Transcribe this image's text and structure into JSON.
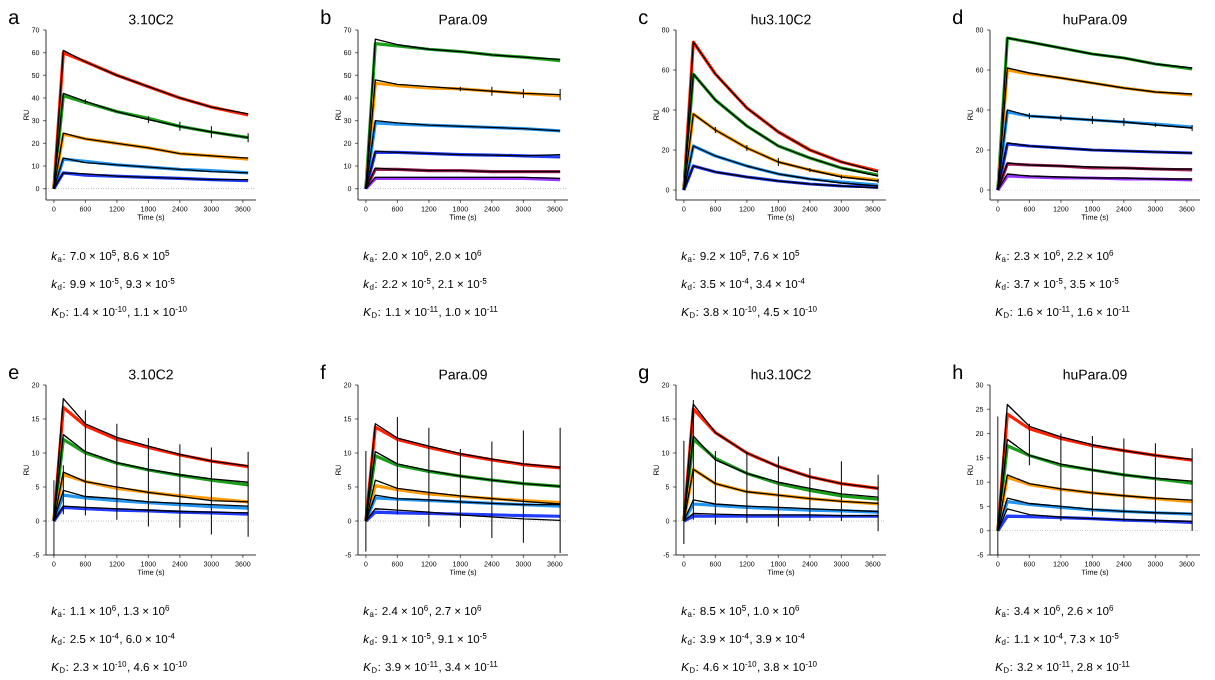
{
  "chart_data": [
    {
      "type": "line",
      "title": "3.10C2",
      "xlabel": "Time (s)",
      "ylabel": "RU",
      "x": [
        0,
        180,
        600,
        1200,
        1800,
        2400,
        3000,
        3700
      ],
      "xlim": [
        -150,
        3850
      ],
      "xticks": [
        0,
        600,
        1200,
        1800,
        2400,
        3000,
        3600
      ],
      "ylim": [
        -5,
        70
      ],
      "yticks": [
        0,
        10,
        20,
        30,
        40,
        50,
        60,
        70
      ],
      "annotations": [
        "a",
        "*k*$_{a}$: 7.0 × 10$^{5}$, 8.6 × 10$^{5}$",
        "*k*$_{d}$: 9.9 × 10$^{-5}$, 9.3 × 10$^{-5}$",
        "*K*$_{D}$: 1.4 × 10$^{-10}$, 1.1 × 10$^{-10}$"
      ],
      "ref_lines": [
        {
          "axis": "y",
          "value": 0,
          "line_style": "dotted"
        }
      ],
      "series": [
        {
          "color": "#ff2200",
          "values": [
            0,
            60,
            56,
            50,
            45,
            40,
            36,
            32.5
          ]
        },
        {
          "color": "#1a9e1a",
          "values": [
            0,
            41,
            38,
            34,
            31,
            27.5,
            25,
            22.5
          ]
        },
        {
          "color": "#ff9a00",
          "values": [
            0,
            24,
            22,
            20,
            18,
            15.5,
            14.5,
            13
          ]
        },
        {
          "color": "#2196f3",
          "values": [
            0,
            13,
            12,
            10.5,
            9.5,
            8.5,
            8,
            7
          ]
        },
        {
          "color": "#1f3cff",
          "values": [
            0,
            7,
            6,
            5.5,
            5,
            4.5,
            4,
            3.5
          ]
        },
        {
          "color": "#000000",
          "values": [
            0,
            61,
            56,
            50,
            45,
            40,
            36,
            33
          ]
        },
        {
          "color": "#000000",
          "values": [
            0,
            42,
            38.5,
            34,
            30.5,
            27.5,
            25,
            22.5
          ],
          "errors": [
            null,
            null,
            1,
            null,
            1.5,
            2,
            2.5,
            2
          ]
        },
        {
          "color": "#000000",
          "values": [
            0,
            24.5,
            22,
            20,
            18,
            15.5,
            14.5,
            13.5
          ]
        },
        {
          "color": "#000000",
          "values": [
            0,
            13.5,
            11.5,
            10.5,
            9.5,
            8.5,
            7.5,
            7
          ]
        },
        {
          "color": "#000000",
          "values": [
            0,
            7,
            6.5,
            5.5,
            5,
            4.5,
            4,
            4
          ]
        }
      ]
    },
    {
      "type": "line",
      "title": "Para.09",
      "xlabel": "Time (s)",
      "ylabel": "RU",
      "x": [
        0,
        180,
        600,
        1200,
        1800,
        2400,
        3000,
        3700
      ],
      "xlim": [
        -150,
        3850
      ],
      "xticks": [
        0,
        600,
        1200,
        1800,
        2400,
        3000,
        3600
      ],
      "ylim": [
        -5,
        70
      ],
      "yticks": [
        0,
        10,
        20,
        30,
        40,
        50,
        60,
        70
      ],
      "annotations": [
        "b",
        "*k*$_{a}$: 2.0 × 10$^{6}$, 2.0 × 10$^{6}$",
        "*k*$_{d}$: 2.2 × 10$^{-5}$, 2.1 × 10$^{-5}$",
        "*K*$_{D}$: 1.1 × 10$^{-11}$, 1.0 × 10$^{-11}$"
      ],
      "ref_lines": [
        {
          "axis": "y",
          "value": 0,
          "line_style": "dotted"
        }
      ],
      "series": [
        {
          "color": "#1a9e1a",
          "values": [
            0,
            64,
            63,
            61.5,
            60.5,
            59,
            58,
            56.5
          ]
        },
        {
          "color": "#ff9a00",
          "values": [
            0,
            46.5,
            45.5,
            44.5,
            44,
            43,
            42,
            41
          ]
        },
        {
          "color": "#2196f3",
          "values": [
            0,
            29,
            28.5,
            28,
            27.5,
            27,
            26.5,
            25.5
          ]
        },
        {
          "color": "#1f3cff",
          "values": [
            0,
            16,
            16,
            15.5,
            15,
            14.8,
            14.5,
            14
          ]
        },
        {
          "color": "#a0205a",
          "values": [
            0,
            8.5,
            8.5,
            8,
            8,
            7.5,
            7.5,
            7.5
          ]
        },
        {
          "color": "#9933ff",
          "values": [
            0,
            4.5,
            4.5,
            4.5,
            4.5,
            4.5,
            4.5,
            4
          ]
        },
        {
          "color": "#000000",
          "values": [
            0,
            66,
            63.5,
            61.5,
            60.5,
            59,
            58,
            57
          ]
        },
        {
          "color": "#000000",
          "values": [
            0,
            48,
            46,
            45,
            44,
            43,
            42,
            41.5
          ],
          "errors": [
            null,
            null,
            null,
            null,
            1,
            2,
            2,
            2.5
          ]
        },
        {
          "color": "#000000",
          "values": [
            0,
            30,
            29,
            28,
            27.5,
            27,
            26.5,
            25.5
          ]
        },
        {
          "color": "#000000",
          "values": [
            0,
            16.5,
            16,
            15.5,
            15,
            14.8,
            14.5,
            15
          ]
        },
        {
          "color": "#000000",
          "values": [
            0,
            9,
            8.5,
            8,
            8,
            7.5,
            7.5,
            7.5
          ]
        },
        {
          "color": "#000000",
          "values": [
            0,
            5,
            5,
            5,
            5,
            5,
            5,
            4.5
          ]
        }
      ]
    },
    {
      "type": "line",
      "title": "hu3.10C2",
      "xlabel": "Time (s)",
      "ylabel": "RU",
      "x": [
        0,
        180,
        600,
        1200,
        1800,
        2400,
        3000,
        3700
      ],
      "xlim": [
        -150,
        3850
      ],
      "xticks": [
        0,
        600,
        1200,
        1800,
        2400,
        3000,
        3600
      ],
      "ylim": [
        -5,
        80
      ],
      "yticks": [
        0,
        20,
        40,
        60,
        80
      ],
      "annotations": [
        "c",
        "*k*$_{a}$: 9.2 × 10$^{5}$, 7.6 × 10$^{5}$",
        "*k*$_{d}$: 3.5 × 10$^{-4}$, 3.4 × 10$^{-4}$",
        "*K*$_{D}$: 3.8 × 10$^{-10}$, 4.5 × 10$^{-10}$"
      ],
      "ref_lines": [
        {
          "axis": "y",
          "value": 0,
          "line_style": "dotted"
        }
      ],
      "series": [
        {
          "color": "#ff2200",
          "values": [
            0,
            74,
            58,
            41,
            29,
            20,
            14,
            9.5
          ]
        },
        {
          "color": "#1a9e1a",
          "values": [
            0,
            58,
            45,
            32,
            22,
            16,
            11,
            7.5
          ]
        },
        {
          "color": "#ff9a00",
          "values": [
            0,
            38,
            30,
            21,
            14,
            10,
            7,
            5
          ]
        },
        {
          "color": "#2196f3",
          "values": [
            0,
            22,
            17,
            12,
            8,
            5.5,
            4,
            2.5
          ]
        },
        {
          "color": "#1f3cff",
          "values": [
            0,
            12,
            9,
            6.5,
            4.5,
            3,
            2,
            1.5
          ]
        },
        {
          "color": "#000000",
          "values": [
            0,
            74,
            58,
            41,
            29,
            20,
            14,
            9
          ]
        },
        {
          "color": "#000000",
          "values": [
            0,
            58,
            45,
            32,
            22,
            16,
            11,
            7
          ]
        },
        {
          "color": "#000000",
          "values": [
            0,
            38,
            30,
            21,
            14,
            10,
            6.5,
            4.5
          ],
          "errors": [
            null,
            null,
            1.5,
            1.5,
            2,
            1,
            1,
            1
          ]
        },
        {
          "color": "#000000",
          "values": [
            0,
            22,
            17,
            12,
            8,
            5.5,
            3.5,
            2
          ]
        },
        {
          "color": "#000000",
          "values": [
            0,
            12,
            9,
            6.5,
            4.5,
            3,
            2,
            1
          ]
        }
      ]
    },
    {
      "type": "line",
      "title": "huPara.09",
      "xlabel": "Time (s)",
      "ylabel": "RU",
      "x": [
        0,
        180,
        600,
        1200,
        1800,
        2400,
        3000,
        3700
      ],
      "xlim": [
        -150,
        3850
      ],
      "xticks": [
        0,
        600,
        1200,
        1800,
        2400,
        3000,
        3600
      ],
      "ylim": [
        -5,
        80
      ],
      "yticks": [
        0,
        20,
        40,
        60,
        80
      ],
      "annotations": [
        "d",
        "*k*$_{a}$: 2.3 × 10$^{6}$, 2.2 × 10$^{6}$",
        "*k*$_{d}$: 3.7 × 10$^{-5}$, 3.5 × 10$^{-5}$",
        "*K*$_{D}$: 1.6 × 10$^{-11}$, 1.6 × 10$^{-11}$"
      ],
      "ref_lines": [
        {
          "axis": "y",
          "value": 0,
          "line_style": "dotted"
        }
      ],
      "series": [
        {
          "color": "#1a9e1a",
          "values": [
            0,
            76,
            74,
            71,
            68,
            66,
            63,
            60.5
          ]
        },
        {
          "color": "#ff9a00",
          "values": [
            0,
            60,
            58,
            56,
            53.5,
            51,
            49,
            47.5
          ]
        },
        {
          "color": "#2196f3",
          "values": [
            0,
            39,
            37,
            36,
            35,
            34,
            33,
            31.5
          ]
        },
        {
          "color": "#1f3cff",
          "values": [
            0,
            23,
            22,
            21,
            20,
            19.5,
            19,
            18.5
          ]
        },
        {
          "color": "#a0205a",
          "values": [
            0,
            13,
            12.5,
            12,
            11,
            11,
            10.5,
            10
          ]
        },
        {
          "color": "#9933ff",
          "values": [
            0,
            7,
            6.5,
            6,
            6,
            5.5,
            5.5,
            5
          ]
        },
        {
          "color": "#000000",
          "values": [
            0,
            76,
            74,
            71,
            68,
            66,
            63,
            61
          ]
        },
        {
          "color": "#000000",
          "values": [
            0,
            61,
            58.5,
            56,
            53.5,
            51,
            49,
            48
          ]
        },
        {
          "color": "#000000",
          "values": [
            0,
            40,
            37,
            36,
            35,
            34,
            32.5,
            31
          ],
          "errors": [
            null,
            null,
            1.5,
            1.5,
            2,
            2,
            1,
            1.5
          ]
        },
        {
          "color": "#000000",
          "values": [
            0,
            23.5,
            22,
            21,
            20,
            19.5,
            19,
            18.5
          ]
        },
        {
          "color": "#000000",
          "values": [
            0,
            13.5,
            12.5,
            12,
            11.5,
            11,
            10.5,
            10.5
          ]
        },
        {
          "color": "#000000",
          "values": [
            0,
            8,
            7,
            6.5,
            6,
            6,
            5.5,
            5.5
          ]
        }
      ]
    },
    {
      "type": "line",
      "title": "3.10C2",
      "xlabel": "Time (s)",
      "ylabel": "RU",
      "x": [
        0,
        180,
        600,
        1200,
        1800,
        2400,
        3000,
        3700
      ],
      "xlim": [
        -150,
        3850
      ],
      "xticks": [
        0,
        600,
        1200,
        1800,
        2400,
        3000,
        3600
      ],
      "ylim": [
        -5,
        20
      ],
      "yticks": [
        -5,
        0,
        5,
        10,
        15,
        20
      ],
      "annotations": [
        "e",
        "*k*$_{a}$: 1.1 × 10$^{6}$, 1.3 × 10$^{6}$",
        "*k*$_{d}$: 2.5 × 10$^{-4}$, 6.0 × 10$^{-4}$",
        "*K*$_{D}$: 2.3 × 10$^{-10}$, 4.6 × 10$^{-10}$"
      ],
      "ref_lines": [
        {
          "axis": "y",
          "value": 0,
          "line_style": "dotted"
        }
      ],
      "series": [
        {
          "color": "#ff2200",
          "values": [
            0,
            16.7,
            14,
            12,
            10.8,
            9.7,
            8.8,
            8
          ]
        },
        {
          "color": "#1a9e1a",
          "values": [
            0,
            12,
            10,
            8.5,
            7.5,
            6.7,
            6,
            5.3
          ]
        },
        {
          "color": "#ff9a00",
          "values": [
            0,
            6.8,
            5.8,
            4.8,
            4.2,
            3.7,
            3.3,
            2.8
          ]
        },
        {
          "color": "#2196f3",
          "values": [
            0,
            3.8,
            3.4,
            3,
            2.7,
            2.4,
            2.1,
            1.9
          ]
        },
        {
          "color": "#1f3cff",
          "values": [
            0,
            2,
            1.8,
            1.6,
            1.5,
            1.3,
            1.2,
            1
          ]
        },
        {
          "color": "#000000",
          "values": [
            0,
            18,
            14.3,
            12.3,
            11,
            9.8,
            8.8,
            8.1
          ],
          "errors": [
            [
              -5,
              6
            ],
            null,
            [
              0.8,
              16.3
            ],
            [
              0.2,
              14.3
            ],
            [
              -0.8,
              12.2
            ],
            [
              -1,
              11.3
            ],
            [
              -2,
              10.8
            ],
            [
              -2.3,
              10.2
            ]
          ]
        },
        {
          "color": "#000000",
          "values": [
            0,
            12.7,
            10.2,
            8.6,
            7.6,
            6.8,
            6.2,
            5.7
          ]
        },
        {
          "color": "#000000",
          "values": [
            0,
            7.2,
            5.8,
            5,
            4.2,
            3.6,
            3,
            2.8
          ],
          "errors": [
            null,
            [
              1,
              8.2
            ],
            null,
            null,
            null,
            null,
            null,
            null
          ]
        },
        {
          "color": "#000000",
          "values": [
            0,
            4.5,
            3.6,
            3.3,
            2.8,
            2.6,
            2.4,
            2.2
          ]
        },
        {
          "color": "#000000",
          "values": [
            0,
            2.2,
            2,
            1.8,
            1.6,
            1.4,
            1.3,
            1.2
          ]
        }
      ]
    },
    {
      "type": "line",
      "title": "Para.09",
      "xlabel": "Time (s)",
      "ylabel": "RU",
      "x": [
        0,
        180,
        600,
        1200,
        1800,
        2400,
        3000,
        3700
      ],
      "xlim": [
        -150,
        3850
      ],
      "xticks": [
        0,
        600,
        1200,
        1800,
        2400,
        3000,
        3600
      ],
      "ylim": [
        -5,
        20
      ],
      "yticks": [
        -5,
        0,
        5,
        10,
        15,
        20
      ],
      "annotations": [
        "f",
        "*k*$_{a}$: 2.4 × 10$^{6}$, 2.7 × 10$^{6}$",
        "*k*$_{d}$: 9.1 × 10$^{-5}$, 9.1 × 10$^{-5}$",
        "*K*$_{D}$: 3.9 × 10$^{-11}$, 3.4 × 10$^{-11}$"
      ],
      "ref_lines": [
        {
          "axis": "y",
          "value": 0,
          "line_style": "dotted"
        }
      ],
      "series": [
        {
          "color": "#ff2200",
          "values": [
            0,
            13.8,
            12,
            10.8,
            9.8,
            9,
            8.3,
            7.8
          ]
        },
        {
          "color": "#1a9e1a",
          "values": [
            0,
            9.6,
            8.2,
            7.3,
            6.6,
            6,
            5.5,
            5.1
          ]
        },
        {
          "color": "#ff9a00",
          "values": [
            0,
            5.2,
            4.6,
            4,
            3.6,
            3.3,
            3,
            2.7
          ]
        },
        {
          "color": "#2196f3",
          "values": [
            0,
            3.4,
            3.2,
            3,
            2.8,
            2.6,
            2.4,
            2.2
          ]
        },
        {
          "color": "#1f3cff",
          "values": [
            0,
            1.3,
            1.2,
            1.1,
            1,
            0.9,
            0.8,
            0.7
          ]
        },
        {
          "color": "#000000",
          "values": [
            0,
            14.3,
            12.2,
            11,
            9.9,
            9.1,
            8.4,
            7.9
          ],
          "errors": [
            [
              -4.5,
              10.3
            ],
            null,
            [
              1,
              15.3
            ],
            [
              -0.8,
              13.7
            ],
            [
              -1,
              10.6
            ],
            [
              -2.5,
              11.7
            ],
            [
              -3.2,
              13.3
            ],
            [
              -4.7,
              13.7
            ]
          ]
        },
        {
          "color": "#000000",
          "values": [
            0,
            10.2,
            8.4,
            7.4,
            6.6,
            6,
            5.5,
            5.1
          ]
        },
        {
          "color": "#000000",
          "values": [
            0,
            6,
            4.8,
            4.2,
            3.7,
            3.3,
            2.9,
            2.5
          ]
        },
        {
          "color": "#000000",
          "values": [
            0,
            3.8,
            3.3,
            3.1,
            2.8,
            2.6,
            2.4,
            2.4
          ]
        },
        {
          "color": "#000000",
          "values": [
            0,
            1.8,
            1.6,
            1.3,
            0.9,
            0.6,
            0.3,
            0.1
          ]
        }
      ]
    },
    {
      "type": "line",
      "title": "hu3.10C2",
      "xlabel": "Time (s)",
      "ylabel": "RU",
      "x": [
        0,
        180,
        600,
        1200,
        1800,
        2400,
        3000,
        3700
      ],
      "xlim": [
        -150,
        3850
      ],
      "xticks": [
        0,
        600,
        1200,
        1800,
        2400,
        3000,
        3600
      ],
      "ylim": [
        -5,
        20
      ],
      "yticks": [
        -5,
        0,
        5,
        10,
        15,
        20
      ],
      "annotations": [
        "g",
        "*k*$_{a}$: 8.5 × 10$^{5}$, 1.0 × 10$^{6}$",
        "*k*$_{d}$: 3.9 × 10$^{-4}$, 3.9 × 10$^{-4}$",
        "*K*$_{D}$: 4.6 × 10$^{-10}$, 3.8 × 10$^{-10}$"
      ],
      "ref_lines": [
        {
          "axis": "y",
          "value": 0,
          "line_style": "dotted"
        }
      ],
      "series": [
        {
          "color": "#ff2200",
          "values": [
            0,
            16.5,
            13,
            10,
            8,
            6.5,
            5.5,
            4.8
          ]
        },
        {
          "color": "#1a9e1a",
          "values": [
            0,
            12,
            9.2,
            7,
            5.5,
            4.5,
            3.7,
            3.2
          ]
        },
        {
          "color": "#ff9a00",
          "values": [
            0,
            7.6,
            5.5,
            4.3,
            3.8,
            3.3,
            2.9,
            2.5
          ]
        },
        {
          "color": "#2196f3",
          "values": [
            0,
            2.5,
            2.3,
            2,
            1.8,
            1.6,
            1.5,
            1.3
          ]
        },
        {
          "color": "#1f3cff",
          "values": [
            0,
            0.7,
            0.7,
            0.7,
            0.7,
            0.7,
            0.7,
            0.7
          ]
        },
        {
          "color": "#000000",
          "values": [
            0,
            17.2,
            13,
            10,
            8,
            6.5,
            5.5,
            4.8
          ],
          "errors": [
            [
              -3.4,
              11.8
            ],
            [
              0.2,
              17.8
            ],
            [
              -0.5,
              10.3
            ],
            [
              -0.3,
              10.2
            ],
            [
              -0.8,
              9.5
            ],
            [
              0,
              7.8
            ],
            [
              0,
              8.8
            ],
            [
              -1.5,
              6.8
            ]
          ]
        },
        {
          "color": "#000000",
          "values": [
            0,
            12.5,
            9,
            7,
            5.7,
            4.8,
            4,
            3.5
          ]
        },
        {
          "color": "#000000",
          "values": [
            0,
            7.6,
            5.5,
            4.3,
            3.8,
            3.3,
            2.9,
            2.6
          ]
        },
        {
          "color": "#000000",
          "values": [
            0,
            3.1,
            2.5,
            2.2,
            2,
            1.8,
            1.6,
            1.4
          ]
        },
        {
          "color": "#000000",
          "values": [
            0,
            1.1,
            1,
            0.9,
            0.9,
            0.9,
            0.8,
            0.8
          ]
        }
      ]
    },
    {
      "type": "line",
      "title": "huPara.09",
      "xlabel": "Time (s)",
      "ylabel": "RU",
      "x": [
        0,
        180,
        600,
        1200,
        1800,
        2400,
        3000,
        3700
      ],
      "xlim": [
        -150,
        3850
      ],
      "xticks": [
        0,
        600,
        1200,
        1800,
        2400,
        3000,
        3600
      ],
      "ylim": [
        -5,
        30
      ],
      "yticks": [
        -5,
        0,
        5,
        10,
        15,
        20,
        25,
        30
      ],
      "annotations": [
        "h",
        "*k*$_{a}$: 3.4 × 10$^{6}$, 2.6 × 10$^{6}$",
        "*k*$_{d}$: 1.1 × 10$^{-4}$, 7.3 × 10$^{-5}$",
        "*K*$_{D}$: 3.2 × 10$^{-11}$, 2.8 × 10$^{-11}$"
      ],
      "ref_lines": [
        {
          "axis": "y",
          "value": 0,
          "line_style": "dotted"
        }
      ],
      "series": [
        {
          "color": "#ff2200",
          "values": [
            0,
            24,
            21,
            19,
            17.5,
            16.5,
            15.5,
            14.5
          ]
        },
        {
          "color": "#1a9e1a",
          "values": [
            0,
            17.5,
            15.5,
            13.5,
            12.5,
            11.5,
            10.7,
            9.8
          ]
        },
        {
          "color": "#ff9a00",
          "values": [
            0,
            11,
            9.5,
            8.5,
            7.8,
            7.2,
            6.6,
            6
          ]
        },
        {
          "color": "#2196f3",
          "values": [
            0,
            6,
            5.4,
            4.8,
            4.3,
            4,
            3.7,
            3.4
          ]
        },
        {
          "color": "#1f3cff",
          "values": [
            0,
            3,
            2.9,
            2.7,
            2.5,
            2.2,
            2,
            1.7
          ]
        },
        {
          "color": "#000000",
          "values": [
            0,
            26,
            21.5,
            19.3,
            17.7,
            16.5,
            15.5,
            14.7
          ],
          "errors": [
            [
              -5,
              23.5
            ],
            null,
            [
              13.5,
              22
            ],
            [
              2,
              20
            ],
            [
              3,
              19.5
            ],
            [
              2,
              19
            ],
            [
              1.5,
              18
            ],
            [
              0,
              17
            ]
          ]
        },
        {
          "color": "#000000",
          "values": [
            0,
            18.8,
            15.5,
            13.7,
            12.5,
            11.5,
            10.8,
            10.2
          ]
        },
        {
          "color": "#000000",
          "values": [
            0,
            11.5,
            9.7,
            8.6,
            7.8,
            7.2,
            6.7,
            6.3
          ]
        },
        {
          "color": "#000000",
          "values": [
            0,
            6.7,
            5.6,
            5,
            4.4,
            4,
            3.7,
            3.5
          ]
        },
        {
          "color": "#000000",
          "values": [
            0,
            4.5,
            3.3,
            2.8,
            2.5,
            2.3,
            2.1,
            1.9
          ]
        }
      ]
    }
  ]
}
